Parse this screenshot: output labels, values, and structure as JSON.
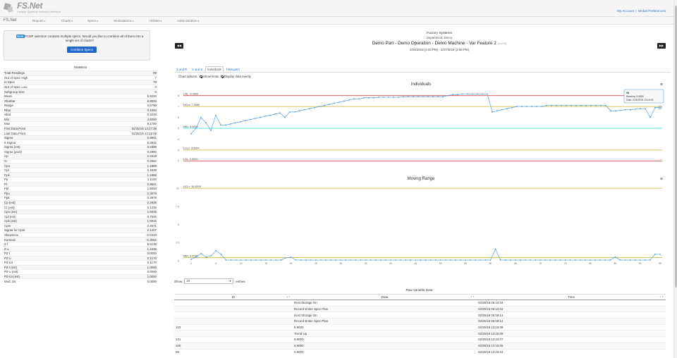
{
  "header": {
    "app_title": "FS.Net",
    "app_subtitle": "Factory Systems Network Interface",
    "links": [
      "My Account",
      "Global Preferences"
    ],
    "link_separator": "|"
  },
  "navbar": {
    "brand": "FS.Net",
    "items": [
      "Reports",
      "Charts",
      "Specs",
      "Workstations",
      "Utilities",
      "Administration"
    ]
  },
  "notice": {
    "badge": "New",
    "text": "PCMF selection contains multiple specs. Would you like to combine all of them into a single set of charts?",
    "button": "Combine Specs"
  },
  "stats": {
    "title": "Statistics",
    "rows": [
      [
        "Total Readings",
        "95"
      ],
      [
        "Out of Spec High",
        "7"
      ],
      [
        "In Spec",
        "79"
      ],
      [
        "Out of Spec Low",
        "0"
      ],
      [
        "Subgroup Size",
        "0"
      ],
      [
        "Mean",
        "6.8225"
      ],
      [
        "Xbarbar",
        "6.8533"
      ],
      [
        "Range",
        "3.6700"
      ],
      [
        "Rbar",
        "0.4394"
      ],
      [
        "Sbar",
        "0.2226"
      ],
      [
        "Min",
        "4.5000"
      ],
      [
        "Max",
        "8.1700"
      ],
      [
        "First Data Point",
        "02/25/19 13:27:39"
      ],
      [
        "Last Data Point",
        "02/25/19 13:15:09"
      ],
      [
        "Sigma",
        "0.8941"
      ],
      [
        "6 Sigma",
        "5.3642"
      ],
      [
        "Sigma (est)",
        "0.1889"
      ],
      [
        "Sigma (pool)",
        "0.2980"
      ],
      [
        "Cp",
        "2.3418"
      ],
      [
        "Cr",
        "0.2992"
      ],
      [
        "Cpu",
        "1.1888"
      ],
      [
        "Cpl",
        "0.4939"
      ],
      [
        "Cpk",
        "1.1888"
      ],
      [
        "Pp",
        "1.1193"
      ],
      [
        "Pr",
        "0.8941"
      ],
      [
        "Ppl",
        "1.5093"
      ],
      [
        "Ppu",
        "0.3978"
      ],
      [
        "Ppk",
        "0.3978"
      ],
      [
        "Cp (est)",
        "0.2938"
      ],
      [
        "Cr (est)",
        "0.1338"
      ],
      [
        "Cpu (est)",
        "1.5915"
      ],
      [
        "Cpl (est)",
        "0.7045"
      ],
      [
        "Cpk (est)",
        "1.5915"
      ],
      [
        "Cpm",
        "0.4571"
      ],
      [
        "Sigma for Cpm",
        "2.1407"
      ],
      [
        "Skewness",
        "-0.5320"
      ],
      [
        "Kurtosis",
        "-0.3052"
      ],
      [
        "Z-l",
        "5.5138"
      ],
      [
        "Z-u",
        "1.1638"
      ],
      [
        "PZ-l",
        "0.0000"
      ],
      [
        "PZ-u",
        "0.1170"
      ],
      [
        "PZ-tot",
        "0.1170"
      ],
      [
        "PZ-l (est)",
        "1.0000"
      ],
      [
        "PZ-u (est)",
        "0.0000"
      ],
      [
        "PZ-tot (est)",
        "1.0000"
      ],
      [
        "Mod. 3S",
        "0.0000"
      ]
    ]
  },
  "report": {
    "company": "Factory Systems",
    "department": "Department: Demo",
    "title": "Demo Part - Demo Operation - Demo Machine - Var Feature 2",
    "of_label": "(4 of 6)",
    "date_range": "2/24/2019 (4:00 PM) - 2/27/2019 (3:59 PM)",
    "prev_symbol": "◀◀",
    "next_symbol": "▶▶"
  },
  "tabs": [
    "X and R",
    "X and S",
    "Individuals",
    "Histogram"
  ],
  "chart_options": {
    "label": "Chart options:",
    "show_limits": "Show limits",
    "display_evenly": "Display data evenly"
  },
  "menu_icon": "≡",
  "chart_data": [
    {
      "type": "line",
      "title": "Individuals",
      "ylim": [
        1.5,
        8.5
      ],
      "y_ticks": [
        2,
        3,
        4,
        5,
        6,
        7,
        8
      ],
      "limits": [
        {
          "name": "USL",
          "label": "USL: 8.0000",
          "value": 8.0,
          "color": "#cc2b2b"
        },
        {
          "name": "UCLx",
          "label": "UCLx: 7.0000",
          "value": 7.0,
          "color": "#c3b336"
        },
        {
          "name": "MID",
          "label": "MID: 5.0000",
          "value": 5.0,
          "color": "#25d0dc"
        },
        {
          "name": "LCLx",
          "label": "LCLx: 3.0000",
          "value": 3.0,
          "color": "#c3b336"
        },
        {
          "name": "LSL",
          "label": "LSL: 2.0000",
          "value": 2.0,
          "color": "#cc2b2b"
        }
      ],
      "values": [
        4.5,
        5.0,
        6.0,
        5.5,
        4.8,
        6.2,
        5.3,
        5.3,
        5.4,
        5.5,
        5.6,
        5.7,
        5.8,
        5.9,
        6.0,
        6.1,
        6.2,
        6.3,
        6.4,
        6.0,
        6.5,
        6.5,
        6.6,
        6.7,
        6.8,
        6.9,
        7.0,
        7.1,
        7.2,
        7.3,
        7.4,
        7.5,
        7.6,
        7.7,
        7.7,
        7.8,
        7.8,
        7.8,
        7.85,
        7.85,
        7.85,
        7.85,
        7.85,
        7.9,
        7.9,
        7.9,
        7.9,
        7.9,
        7.9,
        7.9,
        7.9,
        7.9,
        8.0,
        8.1,
        8.1,
        8.15,
        8.15,
        8.15,
        8.15,
        8.15,
        8.15,
        6.5,
        6.6,
        6.7,
        6.8,
        6.9,
        7.0,
        7.0,
        7.0,
        7.0,
        7.0,
        7.0,
        7.1,
        7.1,
        7.1,
        7.1,
        7.1,
        7.1,
        7.1,
        7.1,
        7.1,
        7.1,
        7.1,
        7.1,
        7.1,
        6.6,
        6.6,
        6.65,
        6.7,
        6.7,
        6.75,
        6.8,
        6.8,
        6.0,
        6.9,
        6.9
      ],
      "tooltip": {
        "title": "95",
        "reading": "Reading: 6.9000",
        "date": "Date: 2/25/2019 13:15:09"
      }
    },
    {
      "type": "line",
      "title": "Moving Range",
      "ylim": [
        0,
        10.5
      ],
      "y_ticks": [
        0,
        2.5,
        5,
        7.5,
        10
      ],
      "limits": [
        {
          "name": "UCLr",
          "label": "UCLr: 10.0000",
          "value": 10.0,
          "color": "#c3b336"
        },
        {
          "name": "MID",
          "label": "MID: 0.4286",
          "value": 0.4286,
          "color": "#c3b336"
        }
      ],
      "x_ticks": [
        0,
        5,
        10,
        15,
        20,
        25,
        30,
        35,
        40,
        45,
        50,
        55,
        60,
        65,
        70,
        75,
        80,
        85,
        90,
        95
      ],
      "values": [
        0.2,
        0.5,
        1.0,
        0.5,
        0.7,
        1.4,
        0.9,
        0.1,
        0.1,
        0.1,
        0.1,
        0.1,
        0.1,
        0.1,
        0.1,
        0.1,
        0.1,
        0.1,
        0.1,
        0.4,
        0.5,
        0.1,
        0.1,
        0.1,
        0.1,
        0.1,
        0.1,
        0.1,
        0.1,
        0.1,
        0.1,
        0.1,
        0.1,
        0.1,
        0.1,
        0.1,
        0.1,
        0.1,
        0.1,
        0.1,
        0.1,
        0.1,
        0.1,
        0.1,
        0.1,
        0.1,
        0.1,
        0.1,
        0.1,
        0.1,
        0.1,
        0.1,
        0.1,
        0.1,
        0.1,
        0.1,
        0.1,
        0.1,
        0.1,
        0.1,
        0.1,
        1.6,
        0.1,
        0.1,
        0.1,
        0.1,
        0.1,
        0.1,
        0.1,
        0.1,
        0.1,
        0.1,
        0.1,
        0.1,
        0.1,
        0.1,
        0.1,
        0.1,
        0.1,
        0.1,
        0.1,
        0.1,
        0.1,
        0.1,
        0.1,
        0.5,
        0.1,
        0.1,
        0.1,
        0.1,
        0.1,
        0.1,
        0.1,
        0.9,
        0.9
      ]
    }
  ],
  "entries": {
    "show_label": "Show",
    "value": "10",
    "entries_label": "entries"
  },
  "raw_table": {
    "title": "Raw Variable Data",
    "columns": [
      "ID",
      "Data",
      "Time"
    ],
    "rows": [
      [
        "",
        "Host Storage On",
        "02/25/19 06:10:04"
      ],
      [
        "",
        "Record Entire Spec Plan",
        "02/25/19 06:10:04"
      ],
      [
        "",
        "Host Storage On",
        "02/25/19 06:09:14"
      ],
      [
        "",
        "Record Entire Spec Plan",
        "02/25/19 06:09:14"
      ],
      [
        "103",
        "6.9000",
        "02/25/19 13:15:09"
      ],
      [
        "",
        "Trend Up",
        "02/25/19 13:15:09"
      ],
      [
        "101",
        "6.9000",
        "02/25/19 13:15:07"
      ],
      [
        "100",
        "6.9000",
        "02/25/19 13:15:05"
      ],
      [
        "99",
        "6.9000",
        "02/25/19 13:15:04"
      ]
    ]
  }
}
